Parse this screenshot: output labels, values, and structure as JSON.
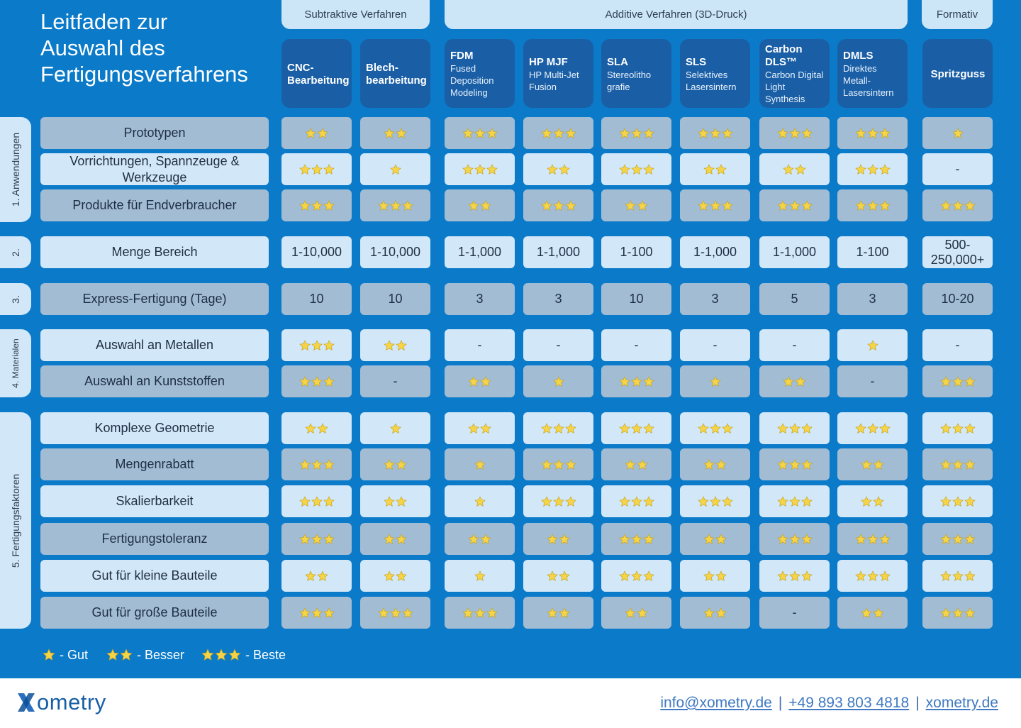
{
  "title": [
    "Leitfaden zur",
    "Auswahl des",
    "Fertigungsverfahrens"
  ],
  "groups": {
    "subtractive": "Subtraktive Verfahren",
    "additive": "Additive Verfahren (3D-Druck)",
    "formative": "Formativ"
  },
  "methods": [
    {
      "name": "CNC-Bearbeitung",
      "sub": ""
    },
    {
      "name": "Blech-bearbeitung",
      "sub": ""
    },
    {
      "name": "FDM",
      "sub": "Fused Deposition Modeling"
    },
    {
      "name": "HP MJF",
      "sub": "HP Multi-Jet Fusion"
    },
    {
      "name": "SLA",
      "sub": "Stereolitho grafie"
    },
    {
      "name": "SLS",
      "sub": "Selektives Lasersintern"
    },
    {
      "name": "Carbon DLS™",
      "sub": "Carbon Digital Light Synthesis"
    },
    {
      "name": "DMLS",
      "sub": "Direktes Metall-Lasersintern"
    },
    {
      "name": "Spritzguss",
      "sub": ""
    }
  ],
  "sections": {
    "s1": "1. Anwendungen",
    "s2": "2.",
    "s3": "3.",
    "s4": "4. Materialen",
    "s5": "5. Fertigungsfaktoren"
  },
  "rows": [
    {
      "label": "Prototypen",
      "values": [
        2,
        2,
        3,
        3,
        3,
        3,
        3,
        3,
        1
      ]
    },
    {
      "label": "Vorrichtungen, Spannzeuge & Werkzeuge",
      "values": [
        3,
        1,
        3,
        2,
        3,
        2,
        2,
        3,
        "-"
      ]
    },
    {
      "label": "Produkte für Endverbraucher",
      "values": [
        3,
        3,
        2,
        3,
        2,
        3,
        3,
        3,
        3
      ]
    },
    {
      "label": "Menge Bereich",
      "values": [
        "1-10,000",
        "1-10,000",
        "1-1,000",
        "1-1,000",
        "1-100",
        "1-1,000",
        "1-1,000",
        "1-100",
        "500-250,000+"
      ]
    },
    {
      "label": "Express-Fertigung (Tage)",
      "values": [
        "10",
        "10",
        "3",
        "3",
        "10",
        "3",
        "5",
        "3",
        "10-20"
      ]
    },
    {
      "label": "Auswahl an Metallen",
      "values": [
        3,
        2,
        "-",
        "-",
        "-",
        "-",
        "-",
        1,
        "-"
      ]
    },
    {
      "label": "Auswahl an Kunststoffen",
      "values": [
        3,
        "-",
        2,
        1,
        3,
        1,
        2,
        "-",
        3
      ]
    },
    {
      "label": "Komplexe Geometrie",
      "values": [
        2,
        1,
        2,
        3,
        3,
        3,
        3,
        3,
        3
      ]
    },
    {
      "label": "Mengenrabatt",
      "values": [
        3,
        2,
        1,
        3,
        2,
        2,
        3,
        2,
        3
      ]
    },
    {
      "label": "Skalierbarkeit",
      "values": [
        3,
        2,
        1,
        3,
        3,
        3,
        3,
        2,
        3
      ]
    },
    {
      "label": "Fertigungstoleranz",
      "values": [
        3,
        2,
        2,
        2,
        3,
        2,
        3,
        3,
        3
      ]
    },
    {
      "label": "Gut für kleine Bauteile",
      "values": [
        2,
        2,
        1,
        2,
        3,
        2,
        3,
        3,
        3
      ]
    },
    {
      "label": "Gut für große Bauteile",
      "values": [
        3,
        3,
        3,
        2,
        2,
        2,
        "-",
        2,
        3
      ]
    }
  ],
  "legend": {
    "good": "- Gut",
    "better": "- Besser",
    "best": "- Beste"
  },
  "footer": {
    "brand": "ometry",
    "email": "info@xometry.de",
    "phone": "+49 893 803 4818",
    "site": "xometry.de",
    "separator": "|"
  },
  "colors": {
    "background": "#0a7ac9",
    "header": "#1a5fa6",
    "cell_light": "#d2e7f7",
    "cell_dark": "#a2bcd4",
    "star": "#f5d547"
  }
}
